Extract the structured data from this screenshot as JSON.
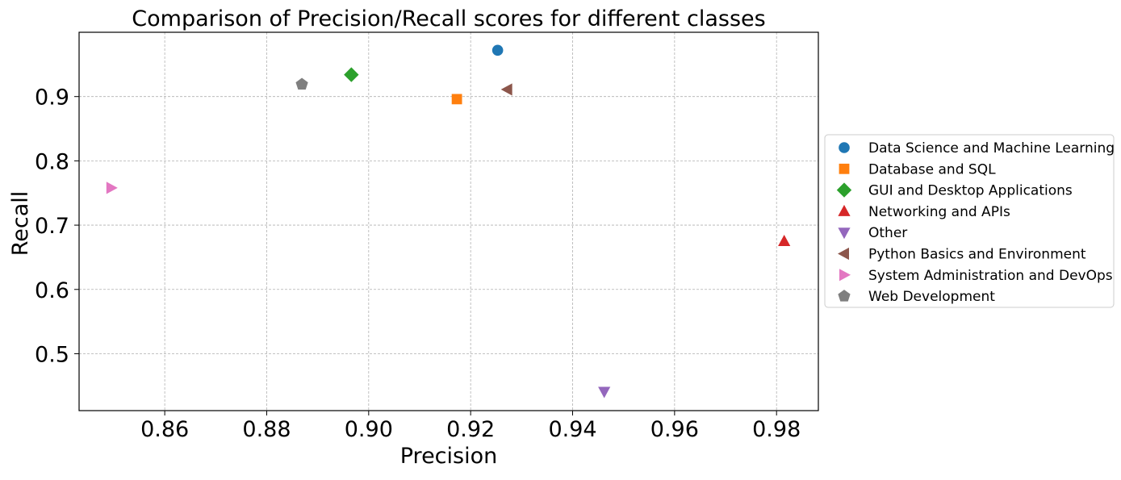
{
  "chart_data": {
    "type": "scatter",
    "title": "Comparison of Precision/Recall scores for different classes",
    "xlabel": "Precision",
    "ylabel": "Recall",
    "xlim": [
      0.8432,
      0.9882
    ],
    "ylim": [
      0.4115,
      1.0
    ],
    "xticks": [
      0.86,
      0.88,
      0.9,
      0.92,
      0.94,
      0.96,
      0.98
    ],
    "xtick_labels": [
      "0.86",
      "0.88",
      "0.90",
      "0.92",
      "0.94",
      "0.96",
      "0.98"
    ],
    "yticks": [
      0.5,
      0.6,
      0.7,
      0.8,
      0.9
    ],
    "ytick_labels": [
      "0.5",
      "0.6",
      "0.7",
      "0.8",
      "0.9"
    ],
    "grid": true,
    "legend_position": "right-outside",
    "series": [
      {
        "name": "Data Science and Machine Learning",
        "marker": "circle",
        "color": "#1f77b4",
        "x": 0.9253,
        "y": 0.972
      },
      {
        "name": "Database and SQL",
        "marker": "square",
        "color": "#ff7f0e",
        "x": 0.9173,
        "y": 0.896
      },
      {
        "name": "GUI and Desktop Applications",
        "marker": "diamond",
        "color": "#2ca02c",
        "x": 0.8966,
        "y": 0.934
      },
      {
        "name": "Networking and APIs",
        "marker": "triangle-up",
        "color": "#d62728",
        "x": 0.9815,
        "y": 0.675
      },
      {
        "name": "Other",
        "marker": "triangle-down",
        "color": "#9467bd",
        "x": 0.9462,
        "y": 0.441
      },
      {
        "name": "Python Basics and Environment",
        "marker": "triangle-left",
        "color": "#8c564b",
        "x": 0.9272,
        "y": 0.911
      },
      {
        "name": "System Administration and DevOps",
        "marker": "triangle-right",
        "color": "#e377c2",
        "x": 0.8495,
        "y": 0.758
      },
      {
        "name": "Web Development",
        "marker": "pentagon",
        "color": "#7f7f7f",
        "x": 0.8869,
        "y": 0.919
      }
    ]
  }
}
